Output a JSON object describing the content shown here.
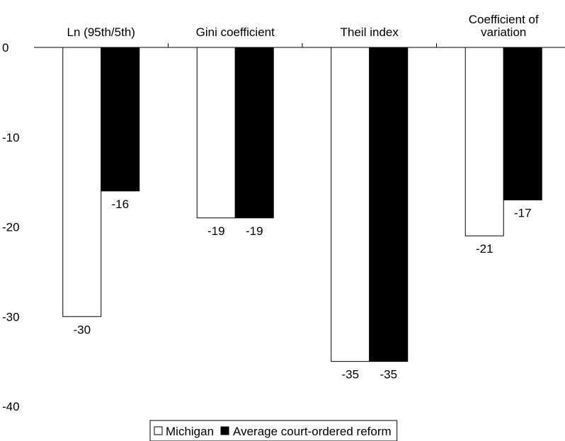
{
  "chart_data": {
    "type": "bar",
    "categories": [
      "Ln (95th/5th)",
      "Gini coefficient",
      "Theil index",
      "Coefficient of variation"
    ],
    "category_label_lines": [
      [
        "Ln (95th/5th)"
      ],
      [
        "Gini coefficient"
      ],
      [
        "Theil index"
      ],
      [
        "Coefficient of",
        "variation"
      ]
    ],
    "series": [
      {
        "name": "Michigan",
        "values": [
          -30,
          -19,
          -35,
          -21
        ],
        "color": "#ffffff"
      },
      {
        "name": "Average court-ordered reform",
        "values": [
          -16,
          -19,
          -35,
          -17
        ],
        "color": "#000000"
      }
    ],
    "data_labels": [
      [
        "-30",
        "-19",
        "-35",
        "-21"
      ],
      [
        "-16",
        "-19",
        "-35",
        "-17"
      ]
    ],
    "yticks": [
      0,
      -10,
      -20,
      -30,
      -40
    ],
    "yticklabels": [
      "0",
      "-10",
      "-20",
      "-30",
      "-40"
    ],
    "ylim": [
      -40,
      0
    ],
    "grid": false,
    "legend_position": "bottom-center",
    "title": "",
    "xlabel": "",
    "ylabel": ""
  }
}
